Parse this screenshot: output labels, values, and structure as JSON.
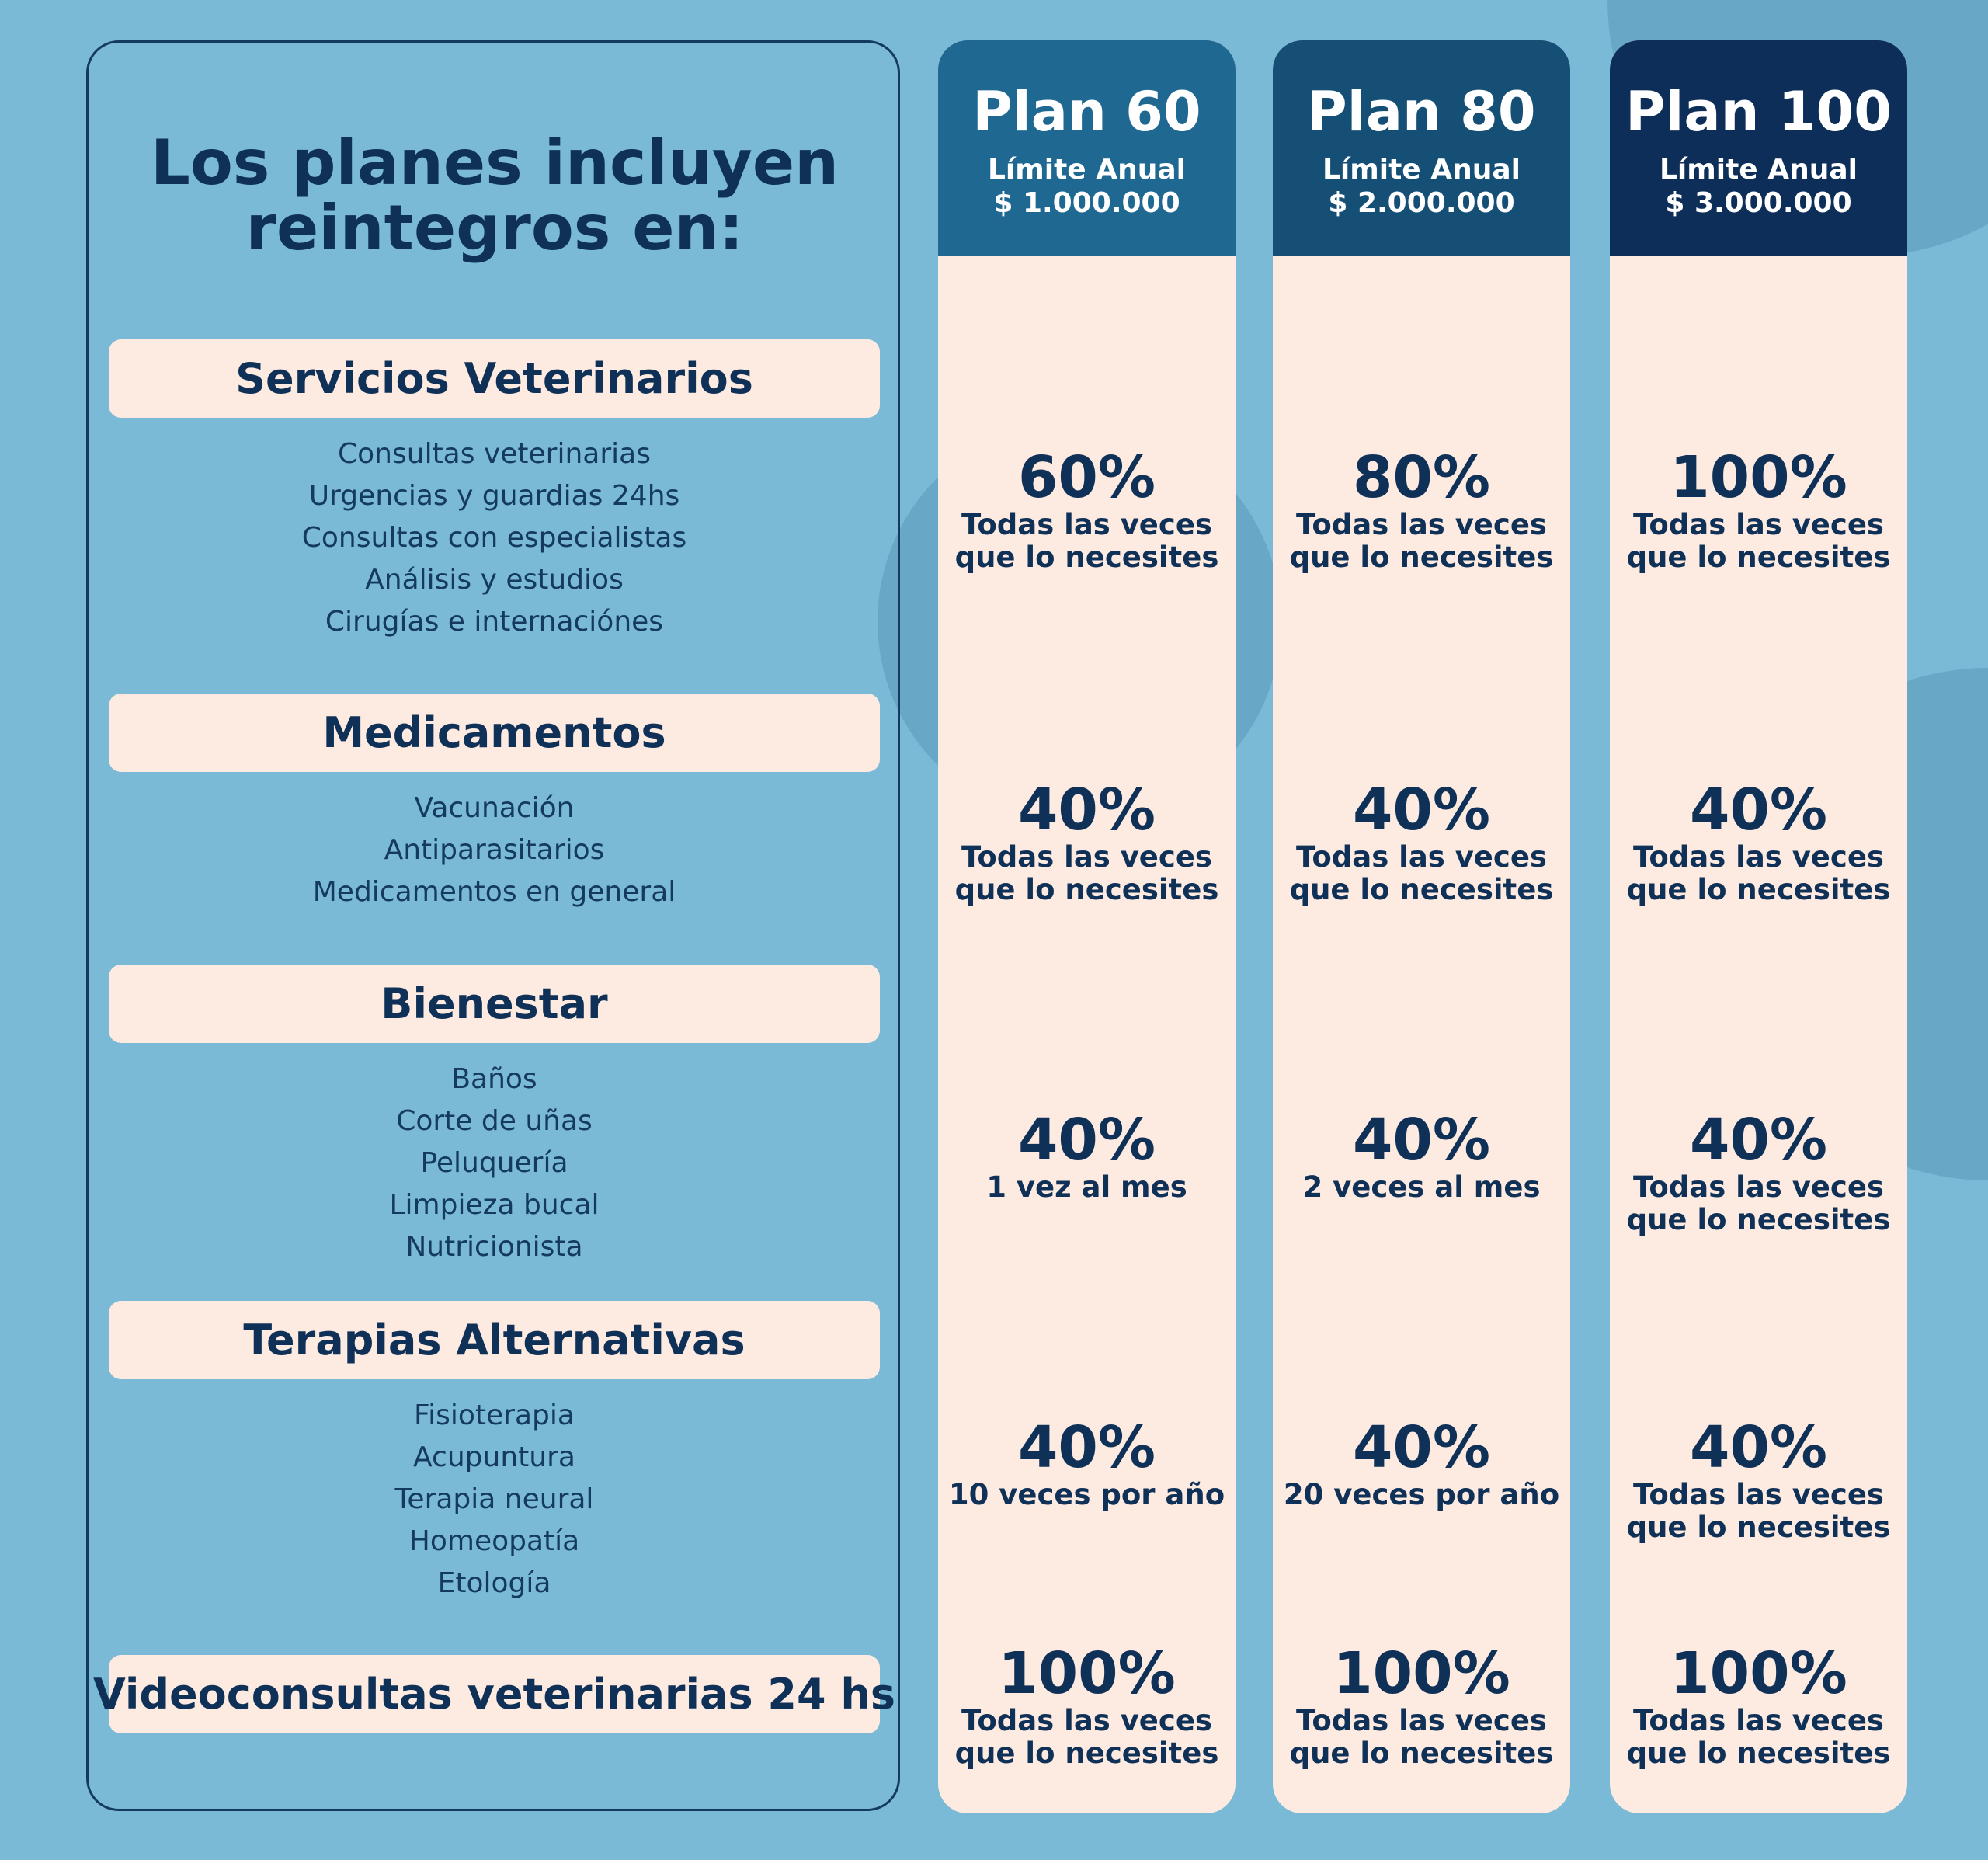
{
  "title": "Los planes incluyen reintegros en:",
  "categories": [
    {
      "name": "Servicios Veterinarios",
      "items": [
        "Consultas veterinarias",
        "Urgencias y guardias 24hs",
        "Consultas con especialistas",
        "Análisis y estudios",
        "Cirugías e internaciónes"
      ]
    },
    {
      "name": "Medicamentos",
      "items": [
        "Vacunación",
        "Antiparasitarios",
        "Medicamentos en general"
      ]
    },
    {
      "name": "Bienestar",
      "items": [
        "Baños",
        "Corte de uñas",
        "Peluquería",
        "Limpieza bucal",
        "Nutricionista"
      ]
    },
    {
      "name": "Terapias Alternativas",
      "items": [
        "Fisioterapia",
        "Acupuntura",
        "Terapia neural",
        "Homeopatía",
        "Etología"
      ]
    },
    {
      "name": "Videoconsultas veterinarias 24 hs",
      "items": []
    }
  ],
  "plans": [
    {
      "name": "Plan 60",
      "limit_label": "Límite Anual",
      "limit": "$ 1.000.000",
      "color": "#1e6892",
      "cells": [
        {
          "percent": "60%",
          "note": "Todas las veces que lo necesites"
        },
        {
          "percent": "40%",
          "note": "Todas las veces que lo necesites"
        },
        {
          "percent": "40%",
          "note": "1 vez al mes"
        },
        {
          "percent": "40%",
          "note": "10 veces por año"
        },
        {
          "percent": "100%",
          "note": "Todas las veces que lo necesites"
        }
      ]
    },
    {
      "name": "Plan 80",
      "limit_label": "Límite Anual",
      "limit": "$ 2.000.000",
      "color": "#154f76",
      "cells": [
        {
          "percent": "80%",
          "note": "Todas las veces que lo necesites"
        },
        {
          "percent": "40%",
          "note": "Todas las veces que lo necesites"
        },
        {
          "percent": "40%",
          "note": "2 veces al mes"
        },
        {
          "percent": "40%",
          "note": "20 veces por año"
        },
        {
          "percent": "100%",
          "note": "Todas las veces que lo necesites"
        }
      ]
    },
    {
      "name": "Plan 100",
      "limit_label": "Límite Anual",
      "limit": "$ 3.000.000",
      "color": "#0c2e58",
      "cells": [
        {
          "percent": "100%",
          "note": "Todas las veces que lo necesites"
        },
        {
          "percent": "40%",
          "note": "Todas las veces que lo necesites"
        },
        {
          "percent": "40%",
          "note": "Todas las veces que lo necesites"
        },
        {
          "percent": "40%",
          "note": "Todas las veces que lo necesites"
        },
        {
          "percent": "100%",
          "note": "Todas las veces que lo necesites"
        }
      ]
    }
  ]
}
